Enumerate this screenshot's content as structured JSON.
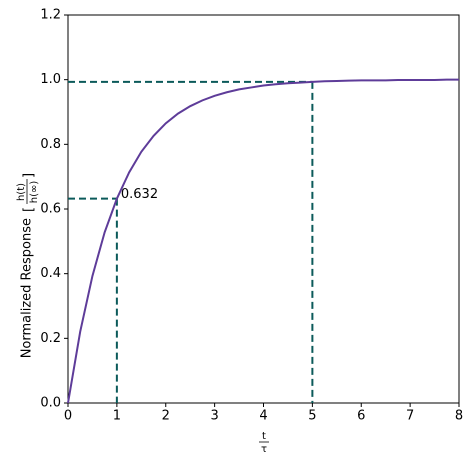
{
  "chart_data": {
    "type": "line",
    "ylabel": "Normalized Response",
    "ylabel_fraction": {
      "numerator": "h(t)",
      "denominator": "h(∞)"
    },
    "xlabel_fraction": {
      "numerator": "t",
      "denominator": "τ"
    },
    "x": [
      0,
      0.25,
      0.5,
      0.75,
      1,
      1.25,
      1.5,
      1.75,
      2,
      2.25,
      2.5,
      2.75,
      3,
      3.25,
      3.5,
      3.75,
      4,
      4.25,
      4.5,
      4.75,
      5,
      5.25,
      5.5,
      5.75,
      6,
      6.25,
      6.5,
      6.75,
      7,
      7.25,
      7.5,
      7.75,
      8
    ],
    "series": [
      {
        "color": "#5e3c99",
        "values": [
          0,
          0.221,
          0.393,
          0.528,
          0.632,
          0.713,
          0.777,
          0.826,
          0.865,
          0.895,
          0.918,
          0.936,
          0.95,
          0.961,
          0.97,
          0.976,
          0.982,
          0.986,
          0.989,
          0.991,
          0.993,
          0.995,
          0.996,
          0.997,
          0.998,
          0.998,
          0.998,
          0.999,
          0.999,
          0.999,
          0.999,
          1.0,
          1.0
        ]
      }
    ],
    "markers": [
      {
        "x": 1,
        "y": 0.632
      },
      {
        "x": 5,
        "y": 0.993
      }
    ],
    "marker_color": "#0b5a5a",
    "xlim": [
      0,
      8
    ],
    "xticks": [
      0,
      1,
      2,
      3,
      4,
      5,
      6,
      7,
      8
    ],
    "ylim": [
      0,
      1.2
    ],
    "yticks": [
      {
        "value": 0,
        "label": "0.0"
      },
      0.2,
      0.4,
      0.6,
      0.8,
      {
        "value": 1,
        "label": "1.0"
      },
      1.2
    ]
  }
}
